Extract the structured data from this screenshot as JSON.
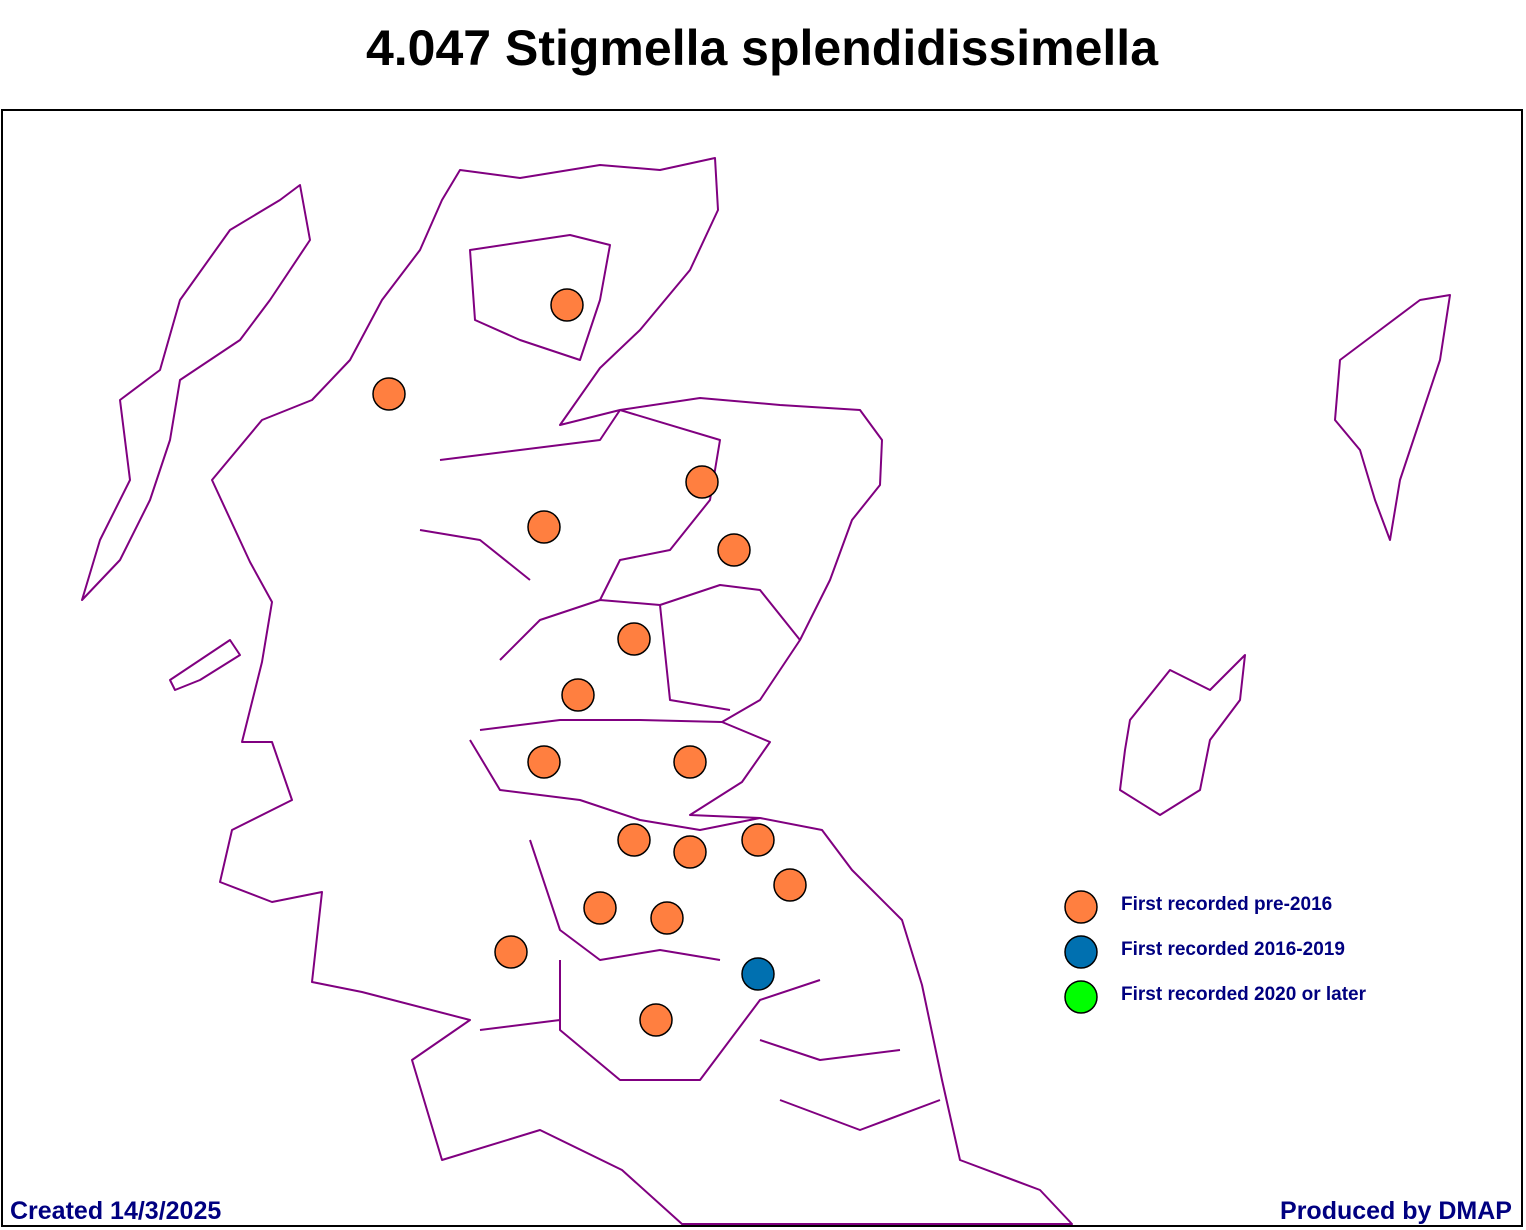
{
  "title": "4.047 Stigmella splendidissimella",
  "legend": [
    {
      "name": "First recorded pre-2016",
      "color": "#ff7f40"
    },
    {
      "name": "First recorded 2016-2019",
      "color": "#0070b0"
    },
    {
      "name": "First recorded 2020 or later",
      "color": "#00ff00"
    }
  ],
  "footer": {
    "created": "Created 14/3/2025",
    "producer": "Produced by DMAP"
  }
}
